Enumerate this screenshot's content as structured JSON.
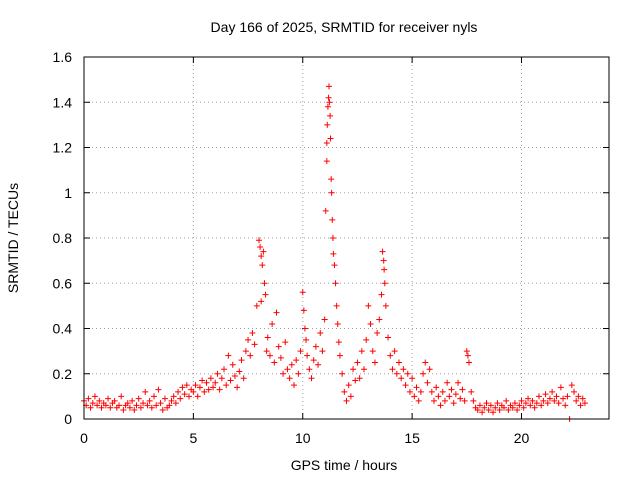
{
  "chart_data": {
    "type": "scatter",
    "title": "Day 166 of 2025, SRMTID for receiver nyls",
    "xlabel": "GPS time / hours",
    "ylabel": "SRMTID / TECUs",
    "xlim": [
      0,
      24
    ],
    "ylim": [
      0,
      1.6
    ],
    "xticks": [
      0,
      5,
      10,
      15,
      20
    ],
    "xtick_labels": [
      "0",
      "5",
      "10",
      "15",
      "20"
    ],
    "yticks": [
      0,
      0.2,
      0.4,
      0.6,
      0.8,
      1,
      1.2,
      1.4,
      1.6
    ],
    "ytick_labels": [
      "0",
      "0.2",
      "0.4",
      "0.6",
      "0.8",
      "1",
      "1.2",
      "1.4",
      "1.6"
    ],
    "grid": true,
    "marker": "+",
    "color": "#ff0000",
    "series": [
      {
        "name": "SRMTID",
        "points": [
          [
            0.0,
            0.08
          ],
          [
            0.1,
            0.06
          ],
          [
            0.2,
            0.09
          ],
          [
            0.3,
            0.05
          ],
          [
            0.4,
            0.07
          ],
          [
            0.5,
            0.1
          ],
          [
            0.6,
            0.06
          ],
          [
            0.7,
            0.08
          ],
          [
            0.8,
            0.05
          ],
          [
            0.9,
            0.07
          ],
          [
            1.0,
            0.06
          ],
          [
            1.1,
            0.09
          ],
          [
            1.2,
            0.05
          ],
          [
            1.3,
            0.07
          ],
          [
            1.4,
            0.08
          ],
          [
            1.5,
            0.05
          ],
          [
            1.6,
            0.06
          ],
          [
            1.7,
            0.1
          ],
          [
            1.8,
            0.04
          ],
          [
            1.9,
            0.06
          ],
          [
            2.0,
            0.07
          ],
          [
            2.1,
            0.05
          ],
          [
            2.2,
            0.08
          ],
          [
            2.3,
            0.04
          ],
          [
            2.4,
            0.06
          ],
          [
            2.5,
            0.09
          ],
          [
            2.6,
            0.05
          ],
          [
            2.7,
            0.07
          ],
          [
            2.8,
            0.12
          ],
          [
            2.9,
            0.06
          ],
          [
            3.0,
            0.08
          ],
          [
            3.1,
            0.05
          ],
          [
            3.2,
            0.1
          ],
          [
            3.3,
            0.06
          ],
          [
            3.4,
            0.13
          ],
          [
            3.5,
            0.07
          ],
          [
            3.6,
            0.04
          ],
          [
            3.7,
            0.09
          ],
          [
            3.8,
            0.05
          ],
          [
            3.9,
            0.06
          ],
          [
            4.0,
            0.08
          ],
          [
            4.1,
            0.1
          ],
          [
            4.2,
            0.07
          ],
          [
            4.3,
            0.12
          ],
          [
            4.4,
            0.09
          ],
          [
            4.5,
            0.14
          ],
          [
            4.6,
            0.11
          ],
          [
            4.7,
            0.15
          ],
          [
            4.8,
            0.1
          ],
          [
            4.9,
            0.13
          ],
          [
            5.0,
            0.12
          ],
          [
            5.1,
            0.15
          ],
          [
            5.2,
            0.1
          ],
          [
            5.3,
            0.14
          ],
          [
            5.4,
            0.17
          ],
          [
            5.5,
            0.12
          ],
          [
            5.6,
            0.16
          ],
          [
            5.7,
            0.13
          ],
          [
            5.8,
            0.18
          ],
          [
            5.9,
            0.14
          ],
          [
            6.0,
            0.16
          ],
          [
            6.1,
            0.2
          ],
          [
            6.2,
            0.13
          ],
          [
            6.3,
            0.18
          ],
          [
            6.4,
            0.22
          ],
          [
            6.5,
            0.15
          ],
          [
            6.6,
            0.28
          ],
          [
            6.7,
            0.17
          ],
          [
            6.8,
            0.24
          ],
          [
            6.9,
            0.19
          ],
          [
            7.0,
            0.14
          ],
          [
            7.1,
            0.21
          ],
          [
            7.2,
            0.26
          ],
          [
            7.3,
            0.18
          ],
          [
            7.4,
            0.3
          ],
          [
            7.5,
            0.35
          ],
          [
            7.6,
            0.28
          ],
          [
            7.7,
            0.38
          ],
          [
            7.8,
            0.33
          ],
          [
            7.9,
            0.5
          ],
          [
            8.0,
            0.79
          ],
          [
            8.05,
            0.76
          ],
          [
            8.1,
            0.72
          ],
          [
            8.15,
            0.68
          ],
          [
            8.2,
            0.74
          ],
          [
            8.25,
            0.6
          ],
          [
            8.3,
            0.55
          ],
          [
            8.1,
            0.52
          ],
          [
            8.35,
            0.3
          ],
          [
            8.4,
            0.36
          ],
          [
            8.5,
            0.28
          ],
          [
            8.6,
            0.42
          ],
          [
            8.7,
            0.25
          ],
          [
            8.8,
            0.47
          ],
          [
            8.9,
            0.32
          ],
          [
            9.0,
            0.27
          ],
          [
            9.1,
            0.2
          ],
          [
            9.2,
            0.34
          ],
          [
            9.3,
            0.22
          ],
          [
            9.4,
            0.18
          ],
          [
            9.5,
            0.24
          ],
          [
            9.6,
            0.15
          ],
          [
            9.7,
            0.26
          ],
          [
            9.8,
            0.2
          ],
          [
            9.9,
            0.3
          ],
          [
            10.0,
            0.56
          ],
          [
            10.05,
            0.48
          ],
          [
            10.1,
            0.4
          ],
          [
            10.15,
            0.35
          ],
          [
            10.2,
            0.28
          ],
          [
            10.3,
            0.22
          ],
          [
            10.4,
            0.18
          ],
          [
            10.5,
            0.26
          ],
          [
            10.6,
            0.32
          ],
          [
            10.7,
            0.24
          ],
          [
            10.8,
            0.38
          ],
          [
            10.9,
            0.3
          ],
          [
            11.0,
            0.44
          ],
          [
            11.05,
            0.92
          ],
          [
            11.1,
            1.14
          ],
          [
            11.1,
            1.22
          ],
          [
            11.12,
            1.3
          ],
          [
            11.15,
            1.38
          ],
          [
            11.18,
            1.42
          ],
          [
            11.2,
            1.47
          ],
          [
            11.22,
            1.4
          ],
          [
            11.25,
            1.34
          ],
          [
            11.27,
            1.24
          ],
          [
            11.3,
            1.06
          ],
          [
            11.32,
            1.0
          ],
          [
            11.35,
            0.88
          ],
          [
            11.38,
            0.8
          ],
          [
            11.4,
            0.73
          ],
          [
            11.45,
            0.68
          ],
          [
            11.5,
            0.6
          ],
          [
            11.55,
            0.5
          ],
          [
            11.6,
            0.42
          ],
          [
            11.65,
            0.34
          ],
          [
            11.7,
            0.28
          ],
          [
            11.8,
            0.2
          ],
          [
            11.9,
            0.12
          ],
          [
            12.0,
            0.08
          ],
          [
            12.1,
            0.15
          ],
          [
            12.2,
            0.1
          ],
          [
            12.3,
            0.22
          ],
          [
            12.4,
            0.17
          ],
          [
            12.5,
            0.25
          ],
          [
            12.6,
            0.18
          ],
          [
            12.7,
            0.3
          ],
          [
            12.8,
            0.22
          ],
          [
            12.9,
            0.35
          ],
          [
            13.0,
            0.5
          ],
          [
            13.1,
            0.42
          ],
          [
            13.2,
            0.3
          ],
          [
            13.3,
            0.25
          ],
          [
            13.4,
            0.38
          ],
          [
            13.5,
            0.44
          ],
          [
            13.6,
            0.55
          ],
          [
            13.65,
            0.74
          ],
          [
            13.7,
            0.7
          ],
          [
            13.72,
            0.66
          ],
          [
            13.75,
            0.6
          ],
          [
            13.8,
            0.5
          ],
          [
            13.9,
            0.36
          ],
          [
            14.0,
            0.28
          ],
          [
            14.1,
            0.22
          ],
          [
            14.2,
            0.3
          ],
          [
            14.3,
            0.2
          ],
          [
            14.4,
            0.25
          ],
          [
            14.5,
            0.18
          ],
          [
            14.6,
            0.22
          ],
          [
            14.7,
            0.15
          ],
          [
            14.8,
            0.2
          ],
          [
            14.9,
            0.12
          ],
          [
            15.0,
            0.18
          ],
          [
            15.1,
            0.1
          ],
          [
            15.2,
            0.14
          ],
          [
            15.3,
            0.08
          ],
          [
            15.4,
            0.12
          ],
          [
            15.5,
            0.2
          ],
          [
            15.6,
            0.25
          ],
          [
            15.7,
            0.16
          ],
          [
            15.8,
            0.22
          ],
          [
            15.9,
            0.12
          ],
          [
            16.0,
            0.08
          ],
          [
            16.1,
            0.14
          ],
          [
            16.2,
            0.1
          ],
          [
            16.3,
            0.06
          ],
          [
            16.4,
            0.12
          ],
          [
            16.5,
            0.08
          ],
          [
            16.6,
            0.16
          ],
          [
            16.7,
            0.1
          ],
          [
            16.8,
            0.13
          ],
          [
            16.9,
            0.07
          ],
          [
            17.0,
            0.11
          ],
          [
            17.1,
            0.16
          ],
          [
            17.2,
            0.09
          ],
          [
            17.3,
            0.13
          ],
          [
            17.4,
            0.08
          ],
          [
            17.5,
            0.3
          ],
          [
            17.55,
            0.28
          ],
          [
            17.6,
            0.25
          ],
          [
            17.7,
            0.12
          ],
          [
            17.8,
            0.08
          ],
          [
            17.9,
            0.05
          ],
          [
            18.0,
            0.04
          ],
          [
            18.1,
            0.06
          ],
          [
            18.2,
            0.03
          ],
          [
            18.3,
            0.05
          ],
          [
            18.4,
            0.07
          ],
          [
            18.5,
            0.04
          ],
          [
            18.6,
            0.06
          ],
          [
            18.7,
            0.03
          ],
          [
            18.8,
            0.05
          ],
          [
            18.9,
            0.07
          ],
          [
            19.0,
            0.04
          ],
          [
            19.1,
            0.06
          ],
          [
            19.2,
            0.05
          ],
          [
            19.3,
            0.08
          ],
          [
            19.4,
            0.04
          ],
          [
            19.5,
            0.06
          ],
          [
            19.6,
            0.05
          ],
          [
            19.7,
            0.07
          ],
          [
            19.8,
            0.04
          ],
          [
            19.9,
            0.06
          ],
          [
            20.0,
            0.08
          ],
          [
            20.1,
            0.05
          ],
          [
            20.2,
            0.07
          ],
          [
            20.3,
            0.09
          ],
          [
            20.4,
            0.06
          ],
          [
            20.5,
            0.08
          ],
          [
            20.6,
            0.05
          ],
          [
            20.7,
            0.07
          ],
          [
            20.8,
            0.1
          ],
          [
            20.9,
            0.06
          ],
          [
            21.0,
            0.08
          ],
          [
            21.1,
            0.11
          ],
          [
            21.2,
            0.07
          ],
          [
            21.3,
            0.09
          ],
          [
            21.4,
            0.12
          ],
          [
            21.5,
            0.08
          ],
          [
            21.6,
            0.1
          ],
          [
            21.7,
            0.07
          ],
          [
            21.8,
            0.14
          ],
          [
            21.9,
            0.09
          ],
          [
            22.0,
            0.06
          ],
          [
            22.1,
            0.1
          ],
          [
            22.2,
            0.0
          ],
          [
            22.3,
            0.15
          ],
          [
            22.4,
            0.12
          ],
          [
            22.5,
            0.08
          ],
          [
            22.6,
            0.1
          ],
          [
            22.7,
            0.06
          ],
          [
            22.8,
            0.09
          ],
          [
            22.9,
            0.07
          ]
        ]
      }
    ]
  }
}
